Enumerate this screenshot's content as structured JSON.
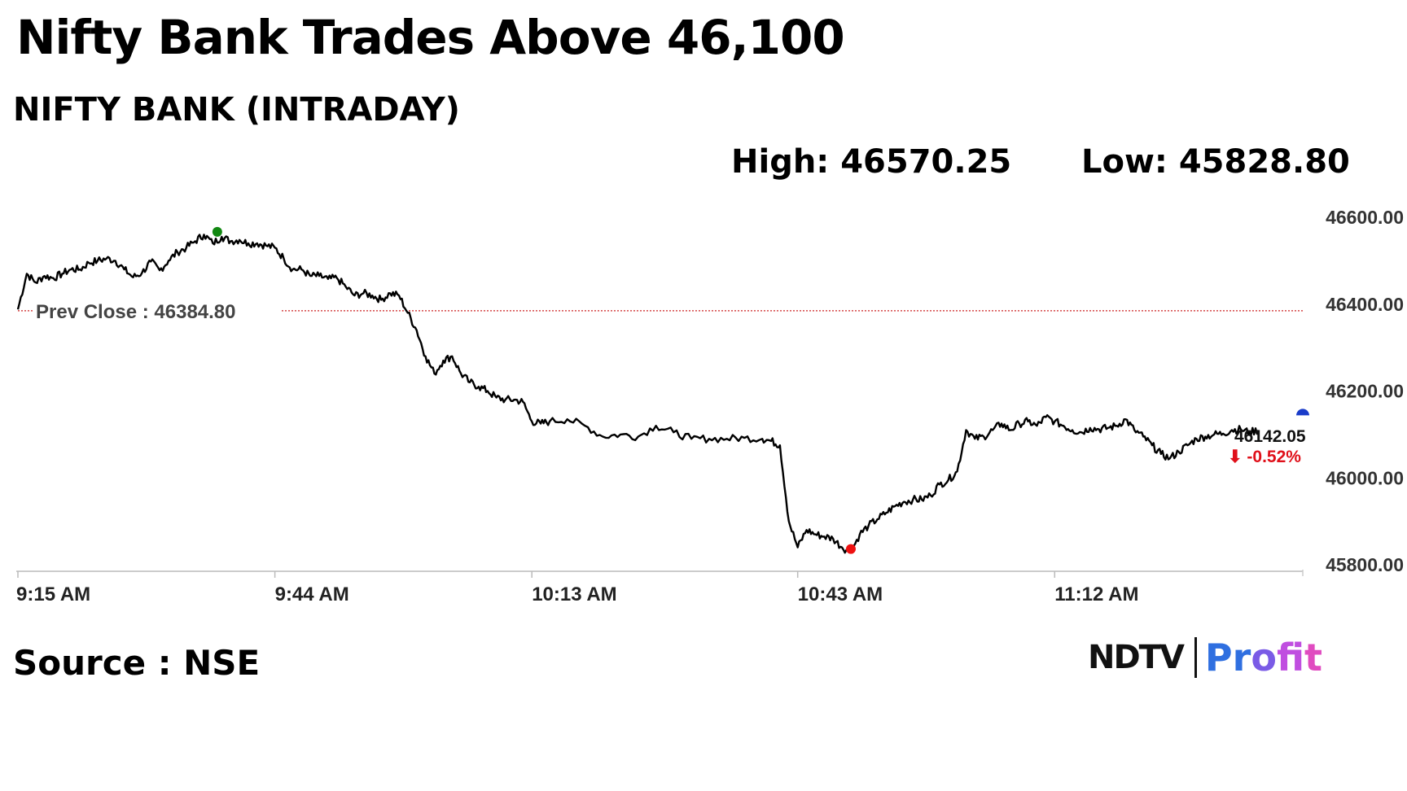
{
  "headline": "Nifty Bank Trades Above 46,100",
  "chart_data": {
    "type": "line",
    "title": "NIFTY BANK (INTRADAY)",
    "high_label": "High: 46570.25",
    "low_label": "Low: 45828.80",
    "high": 46570.25,
    "low": 45828.8,
    "prev_close": 46384.8,
    "prev_close_label": "Prev Close : 46384.80",
    "last_value": "46142.05",
    "change": "-0.52%",
    "change_arrow": "⬇",
    "ylim": [
      45800,
      46600
    ],
    "y_ticks": [
      "46600.00",
      "46400.00",
      "46200.00",
      "46000.00",
      "45800.00"
    ],
    "y_tick_values": [
      46600,
      46400,
      46200,
      46000,
      45800
    ],
    "x_ticks": [
      "9:15 AM",
      "9:44 AM",
      "10:13 AM",
      "10:43 AM",
      "11:12 AM"
    ],
    "x_tick_minutes": [
      0,
      29,
      58,
      88,
      117
    ],
    "x_range_minutes": [
      0,
      145
    ],
    "grid": false,
    "series": [
      {
        "x": [
          0,
          1,
          2,
          3,
          4,
          5,
          6,
          7,
          8,
          9,
          10,
          11,
          12,
          13,
          14,
          15,
          16,
          17,
          18,
          19,
          20,
          21,
          22,
          23,
          24,
          25,
          26,
          27,
          28,
          29,
          30,
          31,
          32,
          33,
          34,
          35,
          36,
          37,
          38,
          39,
          40,
          41,
          42,
          43,
          44,
          45,
          46,
          47,
          48,
          49,
          50,
          51,
          52,
          53,
          54,
          55,
          56,
          57,
          58,
          59,
          60,
          62,
          64,
          66,
          68,
          70,
          72,
          74,
          76,
          78,
          80,
          82,
          84,
          85,
          86,
          87,
          88,
          89,
          90,
          91,
          92,
          93,
          94,
          95,
          96,
          97,
          98,
          99,
          100,
          101,
          102,
          103,
          104,
          105,
          106,
          107,
          108,
          109,
          110,
          111,
          112,
          113,
          114,
          115,
          116,
          117,
          118,
          119,
          120,
          121,
          122,
          123,
          124,
          125,
          126,
          127,
          128,
          129,
          130,
          131,
          132,
          133,
          134,
          135,
          136,
          137,
          138,
          139,
          140
        ],
        "y": [
          46388,
          46470,
          46450,
          46465,
          46460,
          46470,
          46480,
          46480,
          46495,
          46500,
          46505,
          46500,
          46480,
          46462,
          46472,
          46498,
          46478,
          46500,
          46520,
          46530,
          46545,
          46560,
          46540,
          46555,
          46545,
          46548,
          46540,
          46540,
          46535,
          46530,
          46505,
          46480,
          46480,
          46465,
          46465,
          46458,
          46460,
          46440,
          46420,
          46425,
          46420,
          46410,
          46425,
          46420,
          46380,
          46340,
          46280,
          46240,
          46270,
          46280,
          46240,
          46220,
          46210,
          46200,
          46185,
          46180,
          46180,
          46175,
          46130,
          46125,
          46130,
          46135,
          46120,
          46095,
          46100,
          46095,
          46120,
          46105,
          46090,
          46090,
          46090,
          46092,
          46090,
          46085,
          46075,
          45900,
          45840,
          45880,
          45870,
          45865,
          45860,
          45840,
          45830,
          45870,
          45890,
          45905,
          45920,
          45935,
          45945,
          45950,
          45950,
          45960,
          45985,
          45995,
          46015,
          46110,
          46090,
          46095,
          46110,
          46125,
          46110,
          46125,
          46130,
          46120,
          46140,
          46130,
          46120,
          46110,
          46105,
          46115,
          46112,
          46115,
          46120,
          46135,
          46110,
          46095,
          46075,
          46055,
          46045,
          46060,
          46075,
          46090,
          46095,
          46100,
          46102,
          46110,
          46112,
          46105,
          46110
        ]
      }
    ]
  },
  "source": "Source : NSE",
  "logo": {
    "ndtv": "NDTV",
    "profit": "Profit"
  },
  "colors": {
    "line": "#000000",
    "prev_close": "#cc2222",
    "high_marker": "#118811",
    "low_marker": "#ee1111",
    "last_marker": "#1a3cc9",
    "change": "#e0101a"
  }
}
